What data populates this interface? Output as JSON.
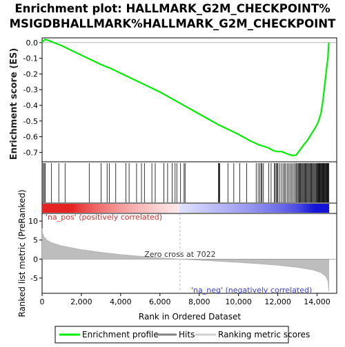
{
  "chart_data": {
    "type": "line",
    "title_line1": "Enrichment plot: HALLMARK_G2M_CHECKPOINT%",
    "title_line2": "MSIGDBHALLMARK%HALLMARK_G2M_CHECKPOINT",
    "es_panel": {
      "ylabel": "Enrichment score (ES)",
      "ylim": [
        -0.76,
        0.03
      ],
      "yticks": [
        0.0,
        -0.1,
        -0.2,
        -0.3,
        -0.4,
        -0.5,
        -0.6,
        -0.7
      ],
      "ytick_labels": [
        "0.0",
        "-0.1",
        "-0.2",
        "-0.3",
        "-0.4",
        "-0.5",
        "-0.6",
        "-0.7"
      ],
      "series_name": "Enrichment profile",
      "color": "#00ee00",
      "points": [
        [
          0,
          0.0
        ],
        [
          60,
          0.01
        ],
        [
          150,
          0.02
        ],
        [
          300,
          0.015
        ],
        [
          600,
          0.0
        ],
        [
          1000,
          -0.02
        ],
        [
          1500,
          -0.05
        ],
        [
          2000,
          -0.08
        ],
        [
          2500,
          -0.11
        ],
        [
          3000,
          -0.14
        ],
        [
          3500,
          -0.165
        ],
        [
          4000,
          -0.195
        ],
        [
          4500,
          -0.225
        ],
        [
          5000,
          -0.255
        ],
        [
          5500,
          -0.285
        ],
        [
          6000,
          -0.315
        ],
        [
          6500,
          -0.35
        ],
        [
          7000,
          -0.385
        ],
        [
          7500,
          -0.42
        ],
        [
          8000,
          -0.455
        ],
        [
          8500,
          -0.49
        ],
        [
          9000,
          -0.525
        ],
        [
          9500,
          -0.555
        ],
        [
          10000,
          -0.585
        ],
        [
          10500,
          -0.62
        ],
        [
          11000,
          -0.65
        ],
        [
          11500,
          -0.67
        ],
        [
          11800,
          -0.69
        ],
        [
          12000,
          -0.695
        ],
        [
          12200,
          -0.695
        ],
        [
          12400,
          -0.705
        ],
        [
          12600,
          -0.715
        ],
        [
          12800,
          -0.72
        ],
        [
          12950,
          -0.715
        ],
        [
          13100,
          -0.69
        ],
        [
          13300,
          -0.655
        ],
        [
          13500,
          -0.625
        ],
        [
          13700,
          -0.585
        ],
        [
          13900,
          -0.545
        ],
        [
          14050,
          -0.51
        ],
        [
          14200,
          -0.45
        ],
        [
          14300,
          -0.37
        ],
        [
          14400,
          -0.26
        ],
        [
          14480,
          -0.17
        ],
        [
          14550,
          -0.1
        ],
        [
          14600,
          0.0
        ]
      ]
    },
    "hits": [
      60,
      110,
      160,
      480,
      850,
      1170,
      2400,
      3000,
      3310,
      3420,
      3750,
      4270,
      4430,
      4810,
      5060,
      5210,
      5590,
      5760,
      6200,
      6390,
      6620,
      6770,
      6860,
      7050,
      7230,
      7280,
      8980,
      9010,
      9050,
      9460,
      9760,
      10060,
      10420,
      10900,
      11000,
      11080,
      11150,
      11200,
      11270,
      11540,
      11660,
      11820,
      11870,
      11930,
      11980,
      12010,
      12100,
      12190,
      12270,
      12340,
      12400,
      12480,
      12550,
      12620,
      12690,
      12760,
      12830,
      12900,
      12950,
      13000,
      13040,
      13080,
      13120,
      13160,
      13200,
      13240,
      13280,
      13320,
      13360,
      13400,
      13440,
      13480,
      13520,
      13560,
      13600,
      13640,
      13680,
      13720,
      13760,
      13800,
      13840,
      13880,
      13920,
      13960,
      14000,
      14030,
      14060,
      14090,
      14120,
      14150,
      14180,
      14210,
      14240,
      14270,
      14300,
      14330,
      14360,
      14390,
      14420,
      14450,
      14480,
      14510,
      14540,
      14570,
      14600
    ],
    "metric_panel": {
      "ylabel": "Ranked list metric (PreRanked)",
      "ylim": [
        -9,
        12
      ],
      "yticks": [
        10,
        5,
        0,
        -5
      ],
      "ytick_labels": [
        "10",
        "5",
        "0",
        "-5"
      ],
      "series_name": "Ranking metric scores",
      "pos_label": "'na_pos' (positively correlated)",
      "neg_label": "'na_neg' (negatively correlated)",
      "zero_cross_label": "Zero cross at 7022",
      "zero_cross": 7022,
      "profile": [
        [
          0,
          8.0
        ],
        [
          30,
          6.8
        ],
        [
          100,
          5.9
        ],
        [
          250,
          5.0
        ],
        [
          500,
          4.3
        ],
        [
          1000,
          3.5
        ],
        [
          2000,
          2.5
        ],
        [
          3000,
          1.8
        ],
        [
          4000,
          1.2
        ],
        [
          5000,
          0.75
        ],
        [
          6000,
          0.35
        ],
        [
          7022,
          0.0
        ],
        [
          8000,
          -0.3
        ],
        [
          9000,
          -0.6
        ],
        [
          10000,
          -0.9
        ],
        [
          11000,
          -1.25
        ],
        [
          12000,
          -1.65
        ],
        [
          13000,
          -2.2
        ],
        [
          13800,
          -2.9
        ],
        [
          14200,
          -3.6
        ],
        [
          14450,
          -4.6
        ],
        [
          14550,
          -5.8
        ],
        [
          14600,
          -8.5
        ]
      ]
    },
    "x_axis": {
      "xlabel": "Rank in Ordered Dataset",
      "xlim": [
        0,
        15000
      ],
      "xticks": [
        0,
        2000,
        4000,
        6000,
        8000,
        10000,
        12000,
        14000
      ],
      "xtick_labels": [
        "0",
        "2,000",
        "4,000",
        "6,000",
        "8,000",
        "10,000",
        "12,000",
        "14,000"
      ],
      "n_genes": 14600
    },
    "legend": {
      "placement": "bottom",
      "items": [
        {
          "label": "Enrichment profile",
          "color": "#00ee00"
        },
        {
          "label": "Hits",
          "color": "#808080"
        },
        {
          "label": "Ranking metric scores",
          "color": "#d0d0d0"
        }
      ]
    }
  }
}
